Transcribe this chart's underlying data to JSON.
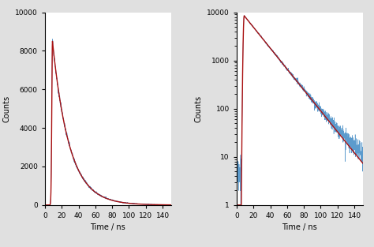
{
  "background_color": "#e0e0e0",
  "panel_background": "#ffffff",
  "time_max": 150,
  "peak_time": 9.0,
  "peak_counts": 8500,
  "tau_rise": 0.8,
  "tau_decay": 20.0,
  "blue_color": "#4a90c8",
  "red_color": "#aa1111",
  "xlabel": "Time / ns",
  "ylabel": "Counts",
  "xlim": [
    0,
    150
  ],
  "ylim_linear": [
    0,
    10000
  ],
  "ylim_log": [
    1,
    10000
  ],
  "xticks_left": [
    0,
    20,
    40,
    60,
    80,
    100,
    120,
    140
  ],
  "xticks_right": [
    0,
    20,
    40,
    60,
    80,
    100,
    120,
    140
  ],
  "yticks_linear": [
    0,
    2000,
    4000,
    6000,
    8000,
    10000
  ],
  "n_points": 1500,
  "noise_floor": 5,
  "figsize": [
    4.74,
    3.13
  ],
  "dpi": 100
}
